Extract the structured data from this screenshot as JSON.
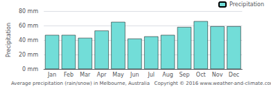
{
  "chart_data": {
    "type": "bar",
    "xlabel": "Average precipitation (rain/snow) in Melbourne, Australia   Copyright © 2016 www.weather-and-climate.com",
    "ylabel": "Precipitation",
    "categories": [
      "Jan",
      "Feb",
      "Mar",
      "Apr",
      "May",
      "Jun",
      "Jul",
      "Aug",
      "Sep",
      "Oct",
      "Nov",
      "Dec"
    ],
    "series": [
      {
        "name": "Precipitation",
        "color": "#72DDD8",
        "values": [
          47,
          47,
          43,
          53,
          65,
          42,
          45,
          47,
          58,
          66,
          59,
          59
        ]
      }
    ],
    "ylim": [
      0,
      80
    ],
    "yticks": [
      {
        "value": 0,
        "label": "0 mm"
      },
      {
        "value": 20,
        "label": "20 mm"
      },
      {
        "value": 40,
        "label": "40 mm"
      },
      {
        "value": 60,
        "label": "60 mm"
      },
      {
        "value": 80,
        "label": "80 mm"
      }
    ],
    "grid": true,
    "legend": "upper right"
  }
}
